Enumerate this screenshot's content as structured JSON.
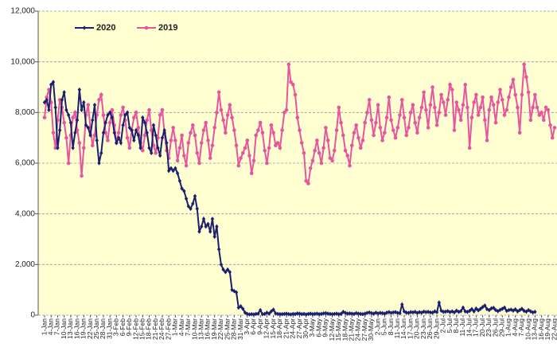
{
  "chart_data": {
    "type": "line",
    "categories": [
      "1-Jan",
      null,
      null,
      "4-Jan",
      null,
      null,
      "7-Jan",
      null,
      null,
      "10-Jan",
      null,
      null,
      "13-Jan",
      null,
      null,
      "16-Jan",
      null,
      null,
      "19-Jan",
      null,
      null,
      "22-Jan",
      null,
      null,
      "25-Jan",
      null,
      null,
      "28-Jan",
      null,
      null,
      "31-Jan",
      null,
      null,
      "3-Feb",
      null,
      null,
      "6-Feb",
      null,
      null,
      "9-Feb",
      null,
      null,
      "12-Feb",
      null,
      null,
      "15-Feb",
      null,
      null,
      "18-Feb",
      null,
      null,
      "21-Feb",
      null,
      null,
      "24-Feb",
      null,
      null,
      "27-Feb",
      null,
      null,
      "1-Mar",
      null,
      null,
      "4-Mar",
      null,
      null,
      "7-Mar",
      null,
      null,
      "10-Mar",
      null,
      null,
      "13-Mar",
      null,
      null,
      "16-Mar",
      null,
      null,
      "19-Mar",
      null,
      null,
      "22-Mar",
      null,
      null,
      "25-Mar",
      null,
      null,
      "28-Mar",
      null,
      null,
      "31-Mar",
      null,
      null,
      "3-Apr",
      null,
      null,
      "6-Apr",
      null,
      null,
      "9-Apr",
      null,
      null,
      "12-Apr",
      null,
      null,
      "15-Apr",
      null,
      null,
      "18-Apr",
      null,
      null,
      "21-Apr",
      null,
      null,
      "24-Apr",
      null,
      null,
      "27-Apr",
      null,
      null,
      "30-Apr",
      null,
      null,
      "3-May",
      null,
      null,
      "6-May",
      null,
      null,
      "9-May",
      null,
      null,
      "12-May",
      null,
      null,
      "15-May",
      null,
      null,
      "18-May",
      null,
      null,
      "21-May",
      null,
      null,
      "24-May",
      null,
      null,
      "27-May",
      null,
      null,
      "30-May",
      null,
      null,
      "2-Jun",
      null,
      null,
      "5-Jun",
      null,
      null,
      "8-Jun",
      null,
      null,
      "11-Jun",
      null,
      null,
      "14-Jun",
      null,
      null,
      "17-Jun",
      null,
      null,
      "20-Jun",
      null,
      null,
      "23-Jun",
      null,
      null,
      "26-Jun",
      null,
      null,
      "29-Jun",
      null,
      null,
      "2-Jul",
      null,
      null,
      "5-Jul",
      null,
      null,
      "8-Jul",
      null,
      null,
      "11-Jul",
      null,
      null,
      "14-Jul",
      null,
      null,
      "17-Jul",
      null,
      null,
      "20-Jul",
      null,
      null,
      "23-Jul",
      null,
      null,
      "26-Jul",
      null,
      null,
      "29-Jul",
      null,
      null,
      "1-Aug",
      null,
      null,
      "4-Aug",
      null,
      null,
      "7-Aug",
      null,
      null,
      "10-Aug",
      null,
      null,
      "13-Aug",
      null,
      null,
      "16-Aug",
      null,
      null,
      "19-Aug",
      null,
      null,
      "22-Aug"
    ],
    "series": [
      {
        "name": "2020",
        "color": "#1a1f6e",
        "marker": "diamond",
        "values": [
          8400,
          8500,
          8100,
          9100,
          9200,
          8200,
          6600,
          7300,
          8500,
          8800,
          8100,
          7900,
          7600,
          6600,
          7200,
          7700,
          8900,
          8100,
          8400,
          7500,
          7400,
          7100,
          7700,
          8300,
          6900,
          6000,
          6400,
          7200,
          7600,
          7900,
          8000,
          7800,
          7200,
          6800,
          7000,
          6800,
          7500,
          7900,
          8000,
          7400,
          7300,
          6900,
          7300,
          7100,
          6600,
          7800,
          7600,
          7200,
          6600,
          6400,
          7500,
          7100,
          6600,
          6300,
          7000,
          7300,
          6800,
          5700,
          5800,
          5700,
          5800,
          5600,
          5300,
          5000,
          4900,
          4600,
          4300,
          4200,
          4400,
          4700,
          4200,
          3300,
          3500,
          3800,
          3500,
          3600,
          3300,
          3800,
          3100,
          3500,
          2600,
          2000,
          1800,
          1700,
          1800,
          1700,
          1000,
          950,
          900,
          300,
          350,
          250,
          100,
          50,
          30,
          40,
          30,
          50,
          60,
          200,
          40,
          50,
          100,
          60,
          150,
          220,
          70,
          50,
          40,
          40,
          50,
          60,
          40,
          30,
          50,
          40,
          70,
          60,
          40,
          50,
          30,
          50,
          60,
          40,
          50,
          60,
          40,
          50,
          70,
          80,
          60,
          50,
          40,
          50,
          60,
          40,
          50,
          130,
          90,
          60,
          70,
          60,
          50,
          80,
          60,
          50,
          40,
          60,
          90,
          110,
          80,
          60,
          100,
          70,
          90,
          80,
          60,
          100,
          120,
          90,
          110,
          120,
          90,
          80,
          420,
          150,
          100,
          90,
          120,
          110,
          130,
          90,
          120,
          100,
          140,
          120,
          130,
          110,
          100,
          150,
          120,
          500,
          180,
          130,
          140,
          160,
          120,
          150,
          110,
          180,
          130,
          160,
          300,
          150,
          130,
          170,
          240,
          150,
          260,
          190,
          250,
          320,
          380,
          240,
          200,
          270,
          290,
          200,
          160,
          210,
          250,
          300,
          170,
          200,
          220,
          180,
          230,
          150,
          200,
          250,
          170,
          140,
          200,
          150,
          110,
          130,
          null,
          null,
          null,
          null,
          null,
          null,
          null,
          null,
          null
        ]
      },
      {
        "name": "2019",
        "color": "#e8559e",
        "marker": "circle",
        "values": [
          7800,
          8600,
          8900,
          8400,
          7200,
          6600,
          7700,
          8500,
          8200,
          7600,
          7000,
          6000,
          7100,
          7800,
          8000,
          7300,
          6800,
          5500,
          6600,
          7900,
          8300,
          7400,
          6700,
          7100,
          7900,
          8500,
          8700,
          7900,
          7200,
          6900,
          7600,
          8100,
          7500,
          6800,
          7200,
          7900,
          8200,
          7700,
          7000,
          6600,
          7300,
          7800,
          8000,
          7400,
          6800,
          6500,
          7100,
          7700,
          8100,
          7300,
          6700,
          6400,
          7000,
          7900,
          8100,
          7200,
          6500,
          6200,
          6900,
          7400,
          6900,
          6100,
          6600,
          7100,
          6300,
          5900,
          6800,
          7200,
          7500,
          7100,
          6400,
          6000,
          6800,
          7300,
          7600,
          6900,
          6200,
          6700,
          7400,
          8000,
          8800,
          8100,
          7700,
          7200,
          7900,
          8300,
          7800,
          7300,
          6700,
          5900,
          6200,
          6400,
          6600,
          6900,
          6300,
          5600,
          6100,
          7100,
          7300,
          7600,
          7200,
          6500,
          6000,
          6600,
          7500,
          7200,
          6700,
          6800,
          6600,
          7300,
          8000,
          8100,
          9900,
          9200,
          9100,
          8700,
          7800,
          7300,
          6800,
          6400,
          5300,
          5200,
          5800,
          6100,
          6500,
          6900,
          6400,
          6000,
          6600,
          7400,
          6900,
          6200,
          6100,
          6500,
          7300,
          8200,
          7600,
          7100,
          6500,
          6300,
          5900,
          6700,
          7200,
          7500,
          7000,
          6600,
          6900,
          7600,
          8000,
          8500,
          7700,
          7100,
          7600,
          8300,
          7400,
          6900,
          7200,
          7800,
          8600,
          7700,
          7300,
          7000,
          7400,
          7900,
          8500,
          7800,
          7100,
          7400,
          8000,
          8300,
          7600,
          7200,
          7800,
          8200,
          8800,
          8100,
          7400,
          8300,
          9000,
          8200,
          7500,
          8000,
          8700,
          8400,
          7900,
          8500,
          9100,
          8900,
          7300,
          8400,
          8100,
          7700,
          8300,
          9100,
          8200,
          6600,
          7800,
          8400,
          8700,
          7900,
          8200,
          8600,
          7700,
          6900,
          8100,
          8600,
          8300,
          7600,
          8400,
          8900,
          8500,
          7900,
          8100,
          8600,
          9000,
          9300,
          8700,
          8200,
          7200,
          8700,
          9900,
          9400,
          8800,
          7700,
          8200,
          8700,
          8200,
          7900,
          8000,
          7700,
          8200,
          8100,
          7500,
          7000,
          7400
        ]
      }
    ],
    "ylim": [
      0,
      12000
    ],
    "yticks": [
      0,
      {
        "value": 2000,
        "label": "2,000"
      },
      {
        "value": 4000,
        "label": "4,000"
      },
      {
        "value": 6000,
        "label": "6,000"
      },
      {
        "value": 8000,
        "label": "8,000"
      },
      {
        "value": 10000,
        "label": "10,000"
      },
      {
        "value": 12000,
        "label": "12,000"
      }
    ],
    "grid": true,
    "legend": "upper left",
    "background": "#ffffd2"
  }
}
